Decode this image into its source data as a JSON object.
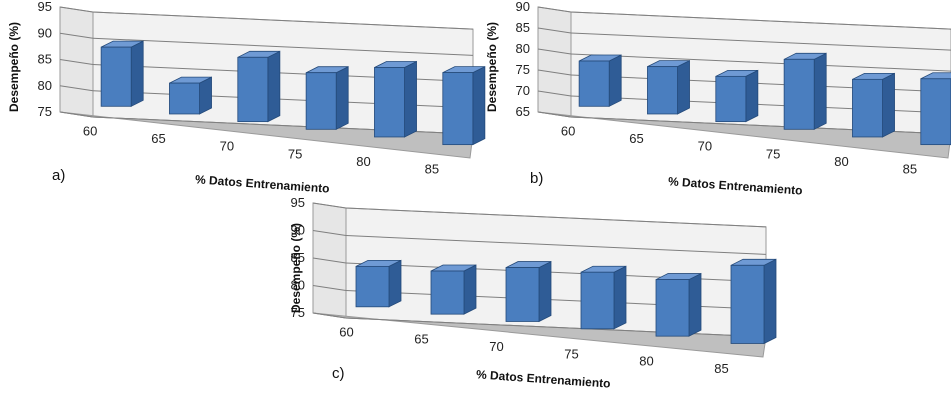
{
  "colors": {
    "bar_front": "#4a7ebf",
    "bar_side": "#2f5c96",
    "bar_top": "#6f9ad4",
    "wall": "#f2f2f2",
    "floor": "#bfbfbf",
    "grid": "#7f7f7f"
  },
  "chart_data": [
    {
      "type": "bar",
      "panel_label": "a)",
      "categories": [
        "60",
        "65",
        "70",
        "75",
        "80",
        "85"
      ],
      "values": [
        86.5,
        81,
        87.5,
        86,
        88.5,
        89
      ],
      "ylabel": "Desempeño (%)",
      "xlabel": "% Datos Entrenamiento",
      "ylim": [
        75,
        95
      ],
      "yticks": [
        "75",
        "80",
        "85",
        "90",
        "95"
      ],
      "grid": true
    },
    {
      "type": "bar",
      "panel_label": "b)",
      "categories": [
        "60",
        "65",
        "70",
        "75",
        "80",
        "85"
      ],
      "values": [
        76,
        76.5,
        76,
        82,
        79,
        81
      ],
      "ylabel": "Desempeño (%)",
      "xlabel": "% Datos Entrenamiento",
      "ylim": [
        65,
        90
      ],
      "yticks": [
        "65",
        "70",
        "75",
        "80",
        "85",
        "90"
      ],
      "grid": true
    },
    {
      "type": "bar",
      "panel_label": "c)",
      "categories": [
        "60",
        "65",
        "70",
        "75",
        "80",
        "85"
      ],
      "values": [
        82.5,
        83,
        85,
        85.5,
        85.5,
        89.5
      ],
      "ylabel": "Desempeño (%)",
      "xlabel": "% Datos Entrenamiento",
      "ylim": [
        75,
        95
      ],
      "yticks": [
        "75",
        "80",
        "85",
        "90",
        "95"
      ],
      "grid": true
    }
  ]
}
